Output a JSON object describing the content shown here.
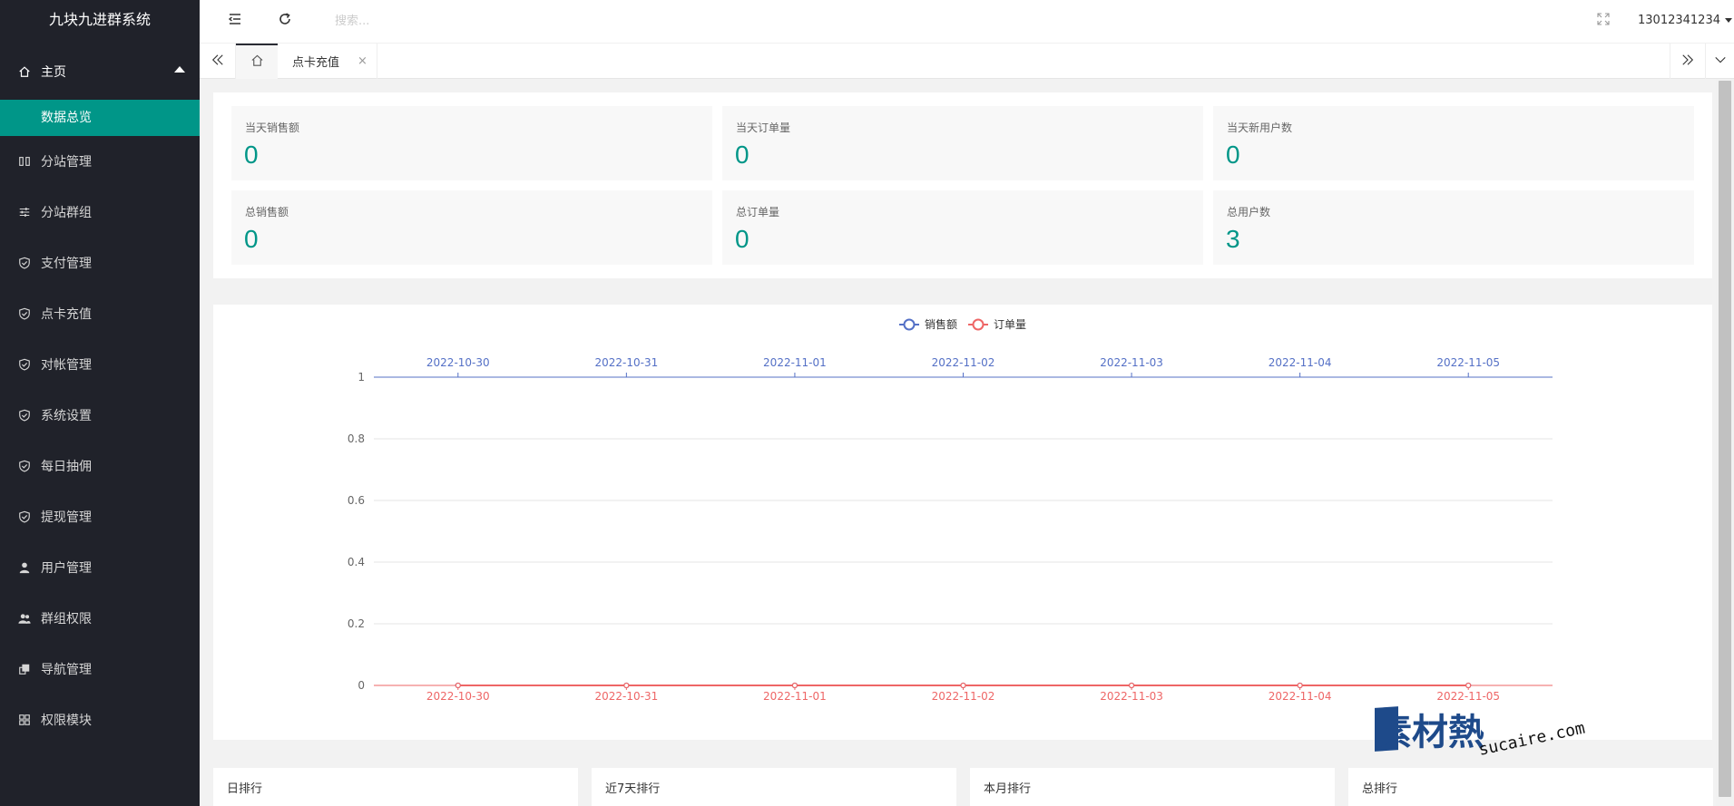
{
  "app": {
    "title": "九块九进群系统"
  },
  "sidebar": {
    "parent": {
      "label": "主页",
      "icon": "home-icon"
    },
    "sub": {
      "label": "数据总览"
    },
    "items": [
      {
        "label": "分站管理",
        "icon": "columns-icon"
      },
      {
        "label": "分站群组",
        "icon": "sliders-icon"
      },
      {
        "label": "支付管理",
        "icon": "shield-check-icon"
      },
      {
        "label": "点卡充值",
        "icon": "shield-check-icon"
      },
      {
        "label": "对帐管理",
        "icon": "shield-check-icon"
      },
      {
        "label": "系统设置",
        "icon": "shield-check-icon"
      },
      {
        "label": "每日抽佣",
        "icon": "shield-check-icon"
      },
      {
        "label": "提现管理",
        "icon": "shield-check-icon"
      },
      {
        "label": "用户管理",
        "icon": "user-icon"
      },
      {
        "label": "群组权限",
        "icon": "users-icon"
      },
      {
        "label": "导航管理",
        "icon": "nav-icon"
      },
      {
        "label": "权限模块",
        "icon": "modules-icon"
      }
    ]
  },
  "header": {
    "search_placeholder": "搜索...",
    "username": "13012341234"
  },
  "tabs": {
    "active_label": "点卡充值",
    "close": "×"
  },
  "stats": [
    {
      "label": "当天销售额",
      "value": "0"
    },
    {
      "label": "当天订单量",
      "value": "0"
    },
    {
      "label": "当天新用户数",
      "value": "0"
    },
    {
      "label": "总销售额",
      "value": "0"
    },
    {
      "label": "总订单量",
      "value": "0"
    },
    {
      "label": "总用户数",
      "value": "3"
    }
  ],
  "chart_data": {
    "type": "line",
    "categories": [
      "2022-10-30",
      "2022-10-31",
      "2022-11-01",
      "2022-11-02",
      "2022-11-03",
      "2022-11-04",
      "2022-11-05"
    ],
    "series": [
      {
        "name": "销售额",
        "values": [
          0,
          0,
          0,
          0,
          0,
          0,
          0
        ],
        "color": "#5470c6",
        "axis": "top"
      },
      {
        "name": "订单量",
        "values": [
          0,
          0,
          0,
          0,
          0,
          0,
          0
        ],
        "color": "#ee6666",
        "axis": "bottom"
      }
    ],
    "yticks": [
      "0",
      "0.2",
      "0.4",
      "0.6",
      "0.8",
      "1"
    ],
    "ylim": [
      0,
      1
    ],
    "legend_position": "top-center",
    "grid": true
  },
  "rankings": [
    {
      "label": "日排行"
    },
    {
      "label": "近7天排行"
    },
    {
      "label": "本月排行"
    },
    {
      "label": "总排行"
    }
  ],
  "watermark": {
    "cn": "素材熱",
    "en": "sucaire.com"
  }
}
